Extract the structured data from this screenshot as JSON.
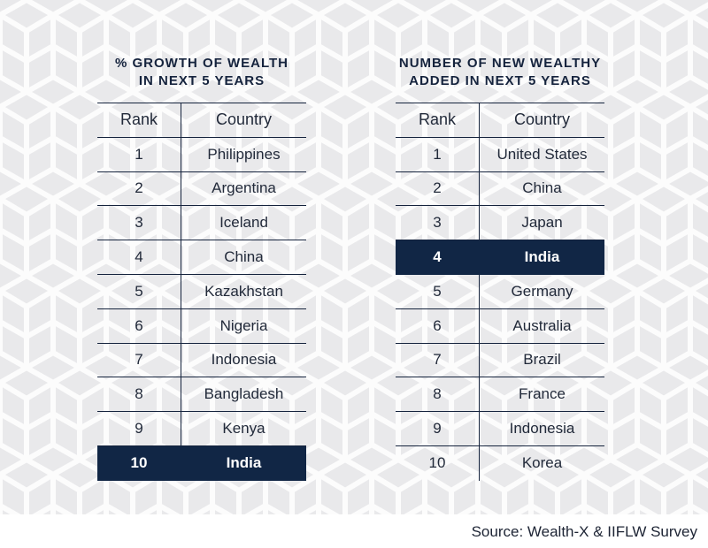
{
  "left_table": {
    "title_line1": "% GROWTH OF WEALTH",
    "title_line2": "IN NEXT 5 YEARS",
    "header_rank": "Rank",
    "header_country": "Country",
    "highlight_rank": "10",
    "rows": [
      {
        "rank": "1",
        "country": "Philippines"
      },
      {
        "rank": "2",
        "country": "Argentina"
      },
      {
        "rank": "3",
        "country": "Iceland"
      },
      {
        "rank": "4",
        "country": "China"
      },
      {
        "rank": "5",
        "country": "Kazakhstan"
      },
      {
        "rank": "6",
        "country": "Nigeria"
      },
      {
        "rank": "7",
        "country": "Indonesia"
      },
      {
        "rank": "8",
        "country": "Bangladesh"
      },
      {
        "rank": "9",
        "country": "Kenya"
      },
      {
        "rank": "10",
        "country": "India"
      }
    ]
  },
  "right_table": {
    "title_line1": "NUMBER OF NEW WEALTHY",
    "title_line2": "ADDED IN NEXT 5 YEARS",
    "header_rank": "Rank",
    "header_country": "Country",
    "highlight_rank": "4",
    "rows": [
      {
        "rank": "1",
        "country": "United States"
      },
      {
        "rank": "2",
        "country": "China"
      },
      {
        "rank": "3",
        "country": "Japan"
      },
      {
        "rank": "4",
        "country": "India"
      },
      {
        "rank": "5",
        "country": "Germany"
      },
      {
        "rank": "6",
        "country": "Australia"
      },
      {
        "rank": "7",
        "country": "Brazil"
      },
      {
        "rank": "8",
        "country": "France"
      },
      {
        "rank": "9",
        "country": "Indonesia"
      },
      {
        "rank": "10",
        "country": "Korea"
      }
    ]
  },
  "source": "Source: Wealth-X & IIFLW Survey",
  "colors": {
    "navy": "#112645",
    "background": "#e9e9eb",
    "pattern": "#ffffff"
  }
}
